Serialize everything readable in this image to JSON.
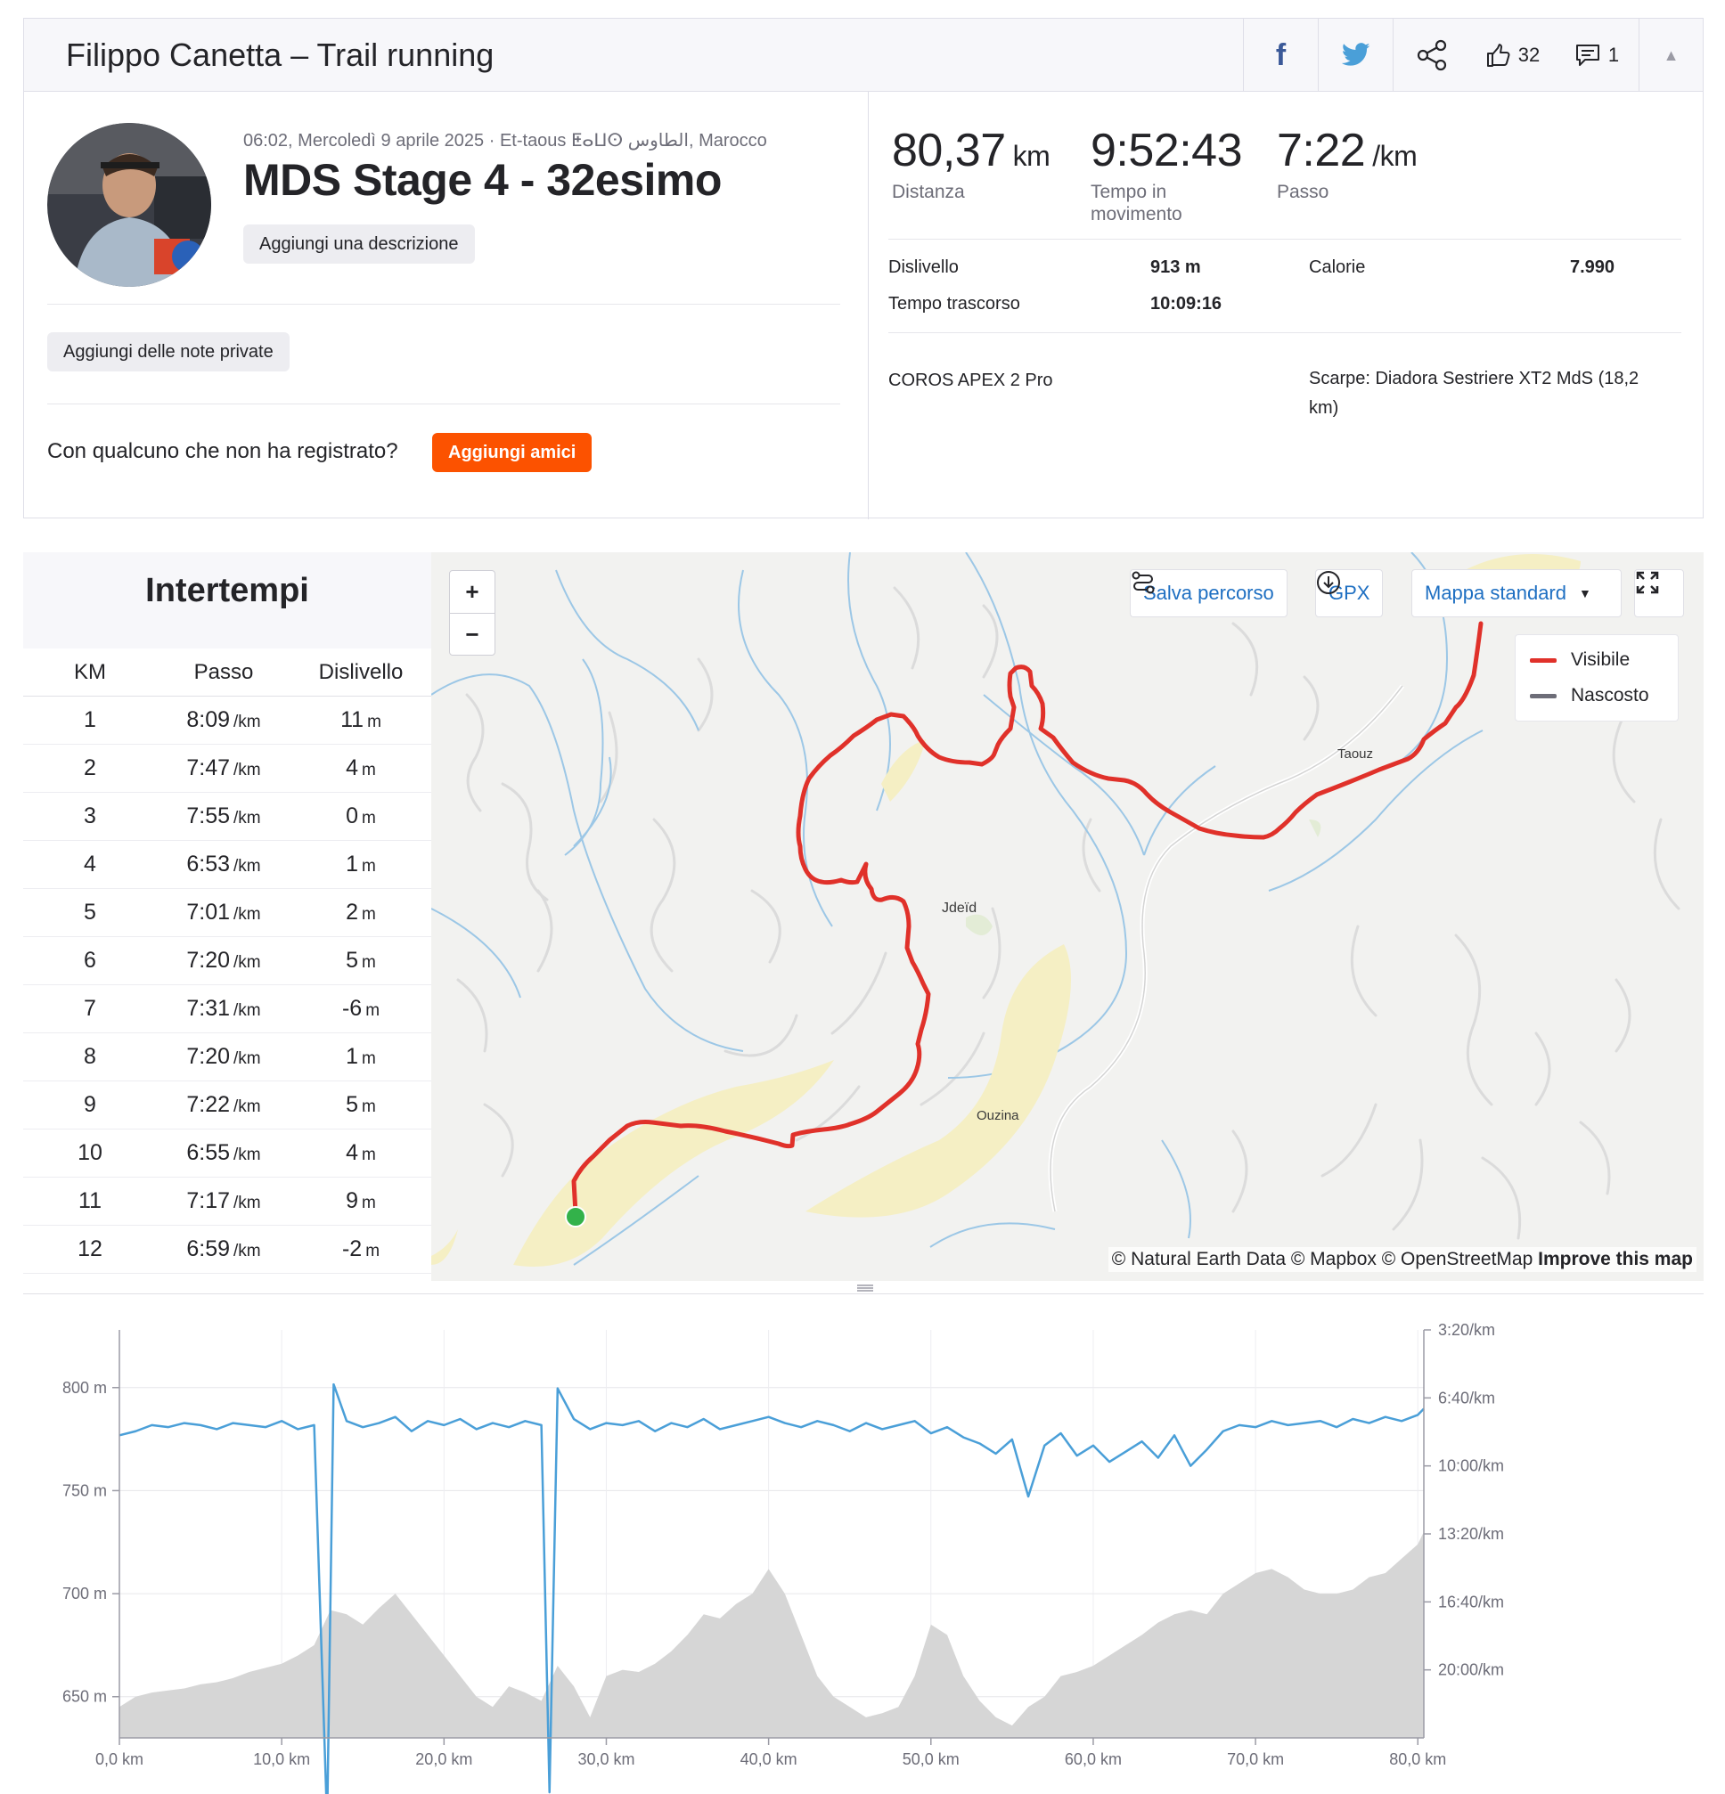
{
  "header": {
    "title": "Filippo Canetta – Trail running",
    "kudos_count": "32",
    "comment_count": "1"
  },
  "activity": {
    "meta": "06:02, Mercoledì 9 aprile 2025 · Et-taous ⵟⴰⵡⵙ الطاوس, Marocco",
    "title": "MDS Stage 4 - 32esimo",
    "add_description": "Aggiungi una descrizione",
    "add_private_notes": "Aggiungi delle note private",
    "friends_question": "Con qualcuno che non ha registrato?",
    "add_friends": "Aggiungi amici"
  },
  "stats": {
    "distance": {
      "value": "80,37",
      "unit": "km",
      "label": "Distanza"
    },
    "moving_time": {
      "value": "9:52:43",
      "label_line1": "Tempo in",
      "label_line2": "movimento"
    },
    "pace": {
      "value": "7:22",
      "unit": "/km",
      "label": "Passo"
    },
    "elevation_label": "Dislivello",
    "elevation_value": "913 m",
    "calories_label": "Calorie",
    "calories_value": "7.990",
    "elapsed_label": "Tempo trascorso",
    "elapsed_value": "10:09:16",
    "device": "COROS APEX 2 Pro",
    "shoes_line1": "Scarpe: Diadora Sestriere XT2 MdS (18,2",
    "shoes_line2": "km)"
  },
  "splits": {
    "title": "Intertempi",
    "columns": [
      "KM",
      "Passo",
      "Dislivello"
    ],
    "pace_unit": "/km",
    "elev_unit": "m",
    "rows": [
      {
        "km": "1",
        "pace": "8:09",
        "elev": "11"
      },
      {
        "km": "2",
        "pace": "7:47",
        "elev": "4"
      },
      {
        "km": "3",
        "pace": "7:55",
        "elev": "0"
      },
      {
        "km": "4",
        "pace": "6:53",
        "elev": "1"
      },
      {
        "km": "5",
        "pace": "7:01",
        "elev": "2"
      },
      {
        "km": "6",
        "pace": "7:20",
        "elev": "5"
      },
      {
        "km": "7",
        "pace": "7:31",
        "elev": "-6"
      },
      {
        "km": "8",
        "pace": "7:20",
        "elev": "1"
      },
      {
        "km": "9",
        "pace": "7:22",
        "elev": "5"
      },
      {
        "km": "10",
        "pace": "6:55",
        "elev": "4"
      },
      {
        "km": "11",
        "pace": "7:17",
        "elev": "9"
      },
      {
        "km": "12",
        "pace": "6:59",
        "elev": "-2"
      }
    ]
  },
  "map": {
    "zoom_in": "+",
    "zoom_out": "−",
    "save_route": "Salva percorso",
    "gpx": "GPX",
    "map_style": "Mappa standard",
    "legend_visible": "Visibile",
    "legend_hidden": "Nascosto",
    "route_color": "#e0312a",
    "hidden_color": "#6d6d78",
    "places": [
      "Taouz",
      "Jdeïd",
      "Ouzina"
    ],
    "attribution_main": "© Natural Earth Data © Mapbox © OpenStreetMap ",
    "attribution_link": "Improve this map"
  },
  "chart_data": {
    "type": "area",
    "x_unit": "km",
    "xlim": [
      0,
      80.37
    ],
    "x_ticks": [
      "0,0 km",
      "10,0 km",
      "20,0 km",
      "30,0 km",
      "40,0 km",
      "50,0 km",
      "60,0 km",
      "70,0 km",
      "80,0 km"
    ],
    "left_ticks": [
      "800 m",
      "750 m",
      "700 m",
      "650 m"
    ],
    "right_ticks": [
      "3:20/km",
      "6:40/km",
      "10:00/km",
      "13:20/km",
      "16:40/km",
      "20:00/km"
    ],
    "series": [
      {
        "kind": "elevation",
        "color": "#d6d6d6",
        "x": [
          0,
          1,
          2,
          3,
          4,
          5,
          6,
          7,
          8,
          9,
          10,
          11,
          12,
          13,
          14,
          15,
          16,
          17,
          18,
          19,
          20,
          21,
          22,
          23,
          24,
          25,
          26,
          27,
          28,
          29,
          30,
          31,
          32,
          33,
          34,
          35,
          36,
          37,
          38,
          39,
          40,
          41,
          42,
          43,
          44,
          45,
          46,
          47,
          48,
          49,
          50,
          51,
          52,
          53,
          54,
          55,
          56,
          57,
          58,
          59,
          60,
          61,
          62,
          63,
          64,
          65,
          66,
          67,
          68,
          69,
          70,
          71,
          72,
          73,
          74,
          75,
          76,
          77,
          78,
          79,
          80,
          80.37
        ],
        "y": [
          645,
          650,
          652,
          653,
          654,
          656,
          657,
          659,
          662,
          664,
          666,
          670,
          675,
          692,
          690,
          685,
          693,
          700,
          690,
          680,
          670,
          660,
          650,
          645,
          655,
          652,
          648,
          665,
          655,
          640,
          660,
          663,
          662,
          666,
          672,
          680,
          690,
          688,
          695,
          700,
          712,
          700,
          680,
          660,
          650,
          645,
          640,
          642,
          645,
          660,
          685,
          680,
          660,
          648,
          640,
          636,
          645,
          650,
          660,
          662,
          665,
          670,
          675,
          680,
          686,
          690,
          692,
          690,
          700,
          705,
          710,
          712,
          708,
          702,
          700,
          700,
          702,
          708,
          710,
          717,
          724,
          730
        ]
      },
      {
        "kind": "pace",
        "color": "#4a9fd8",
        "axis": "right",
        "x": [
          0,
          1,
          2,
          3,
          4,
          5,
          6,
          7,
          8,
          9,
          10,
          11,
          12,
          12.8,
          13.2,
          14,
          15,
          16,
          17,
          18,
          19,
          20,
          21,
          22,
          23,
          24,
          25,
          26,
          26.5,
          27,
          28,
          29,
          30,
          31,
          32,
          33,
          34,
          35,
          36,
          37,
          38,
          39,
          40,
          41,
          42,
          43,
          44,
          45,
          46,
          47,
          48,
          49,
          50,
          51,
          52,
          53,
          54,
          55,
          56,
          57,
          58,
          59,
          60,
          61,
          62,
          63,
          64,
          65,
          66,
          67,
          68,
          69,
          70,
          71,
          72,
          73,
          74,
          75,
          76,
          77,
          78,
          79,
          80,
          80.37
        ],
        "y": [
          8.5,
          8.3,
          8.0,
          8.1,
          7.9,
          8.0,
          8.2,
          7.9,
          8.0,
          8.1,
          7.8,
          8.2,
          8.0,
          27.5,
          6.0,
          7.8,
          8.1,
          7.9,
          7.6,
          8.3,
          7.8,
          8.0,
          7.7,
          8.2,
          7.9,
          8.1,
          7.8,
          8.0,
          26.0,
          6.2,
          7.7,
          8.2,
          7.9,
          8.0,
          7.8,
          8.3,
          7.9,
          8.1,
          7.7,
          8.2,
          8.0,
          7.8,
          7.6,
          7.9,
          8.1,
          7.8,
          8.0,
          8.3,
          7.9,
          8.2,
          8.0,
          7.8,
          8.4,
          8.1,
          8.6,
          8.9,
          9.4,
          8.7,
          11.5,
          9.0,
          8.4,
          9.5,
          9.0,
          9.8,
          9.3,
          8.8,
          9.6,
          8.5,
          10.0,
          9.2,
          8.3,
          8.0,
          8.1,
          7.8,
          8.0,
          7.9,
          7.8,
          8.1,
          7.7,
          7.9,
          7.6,
          7.8,
          7.5,
          7.2
        ]
      }
    ],
    "ylim_left": [
      630,
      828
    ],
    "ylim_right": [
      3.333,
      23.333
    ]
  }
}
